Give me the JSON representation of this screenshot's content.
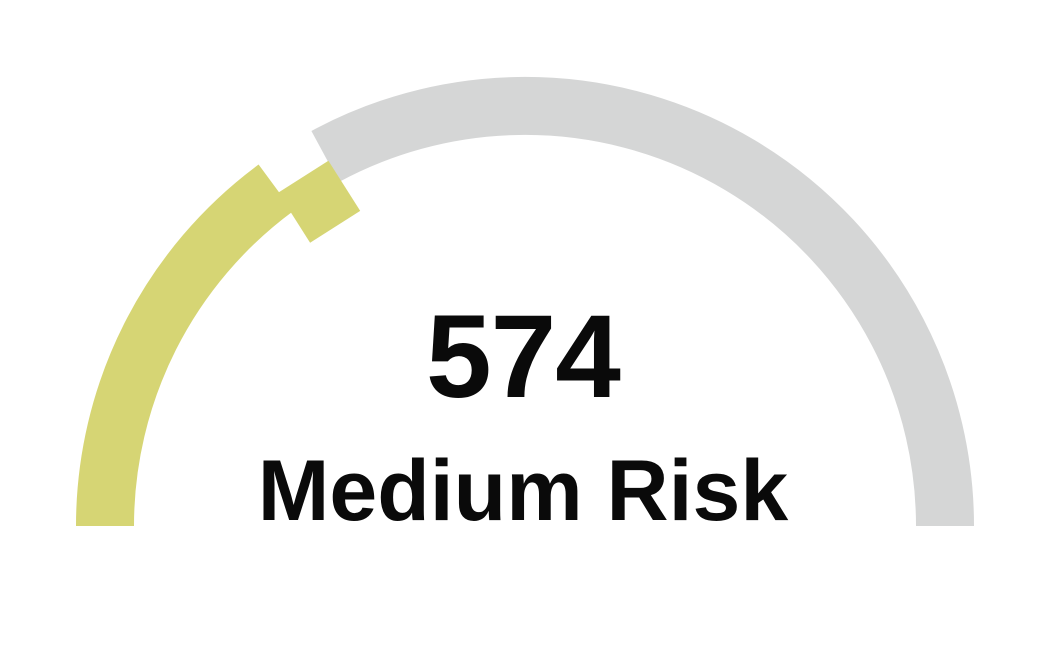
{
  "gauge": {
    "score": "574",
    "risk_label": "Medium Risk",
    "fill_fraction": 0.32,
    "filled_color": "#d6d574",
    "track_color": "#d5d6d6",
    "marker_icon": "diamond-marker-icon"
  }
}
